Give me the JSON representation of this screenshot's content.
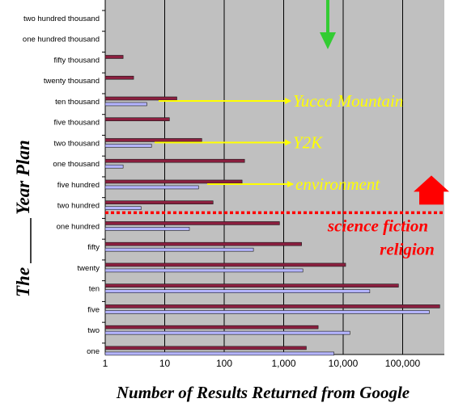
{
  "chart_data": {
    "type": "bar",
    "orientation": "horizontal",
    "x_scale": "log",
    "xlim": [
      1,
      500000
    ],
    "grid": true,
    "xlabel": "Number of Results Returned from Google",
    "ylabel_prefix": "The",
    "ylabel_suffix": "Year Plan",
    "x_ticks": [
      "1",
      "10",
      "100",
      "1,000",
      "10,000",
      "100,000"
    ],
    "x_tick_values": [
      1,
      10,
      100,
      1000,
      10000,
      100000
    ],
    "categories": [
      "two hundred thousand",
      "one hundred thousand",
      "fifty thousand",
      "twenty thousand",
      "ten thousand",
      "five thousand",
      "two thousand",
      "one thousand",
      "five hundred",
      "two hundred",
      "one hundred",
      "fifty",
      "twenty",
      "ten",
      "five",
      "two",
      "one"
    ],
    "series": [
      {
        "color": "#8b1f3f",
        "values": [
          0,
          0,
          2,
          3,
          16,
          12,
          42,
          220,
          200,
          65,
          850,
          2000,
          11000,
          85000,
          420000,
          3800,
          2400
        ]
      },
      {
        "color": "#b4b4ff",
        "values": [
          0,
          0,
          0,
          0,
          5,
          0,
          6,
          2,
          37,
          4,
          26,
          310,
          2100,
          28000,
          280000,
          13000,
          7000
        ]
      }
    ],
    "annotations": [
      {
        "text": "Yucca Mountain",
        "target_category": "ten thousand"
      },
      {
        "text": "Y2K",
        "target_category": "two thousand"
      },
      {
        "text": "environment",
        "target_category": "five hundred"
      }
    ],
    "threshold": {
      "labels": [
        "science fiction",
        "religion"
      ],
      "after_category": "two hundred"
    },
    "colors": {
      "plot_bg": "#c0c0c0",
      "annotation": "#ffff00",
      "threshold": "#ff0000",
      "top_arrow": "#33cc33"
    }
  }
}
